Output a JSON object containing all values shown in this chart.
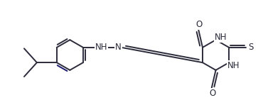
{
  "bg_color": "#ffffff",
  "line_color": "#2b2b3b",
  "font_size": 8.5,
  "lw": 1.4,
  "xlim": [
    0,
    3.7
  ],
  "ylim": [
    0,
    1.55
  ]
}
